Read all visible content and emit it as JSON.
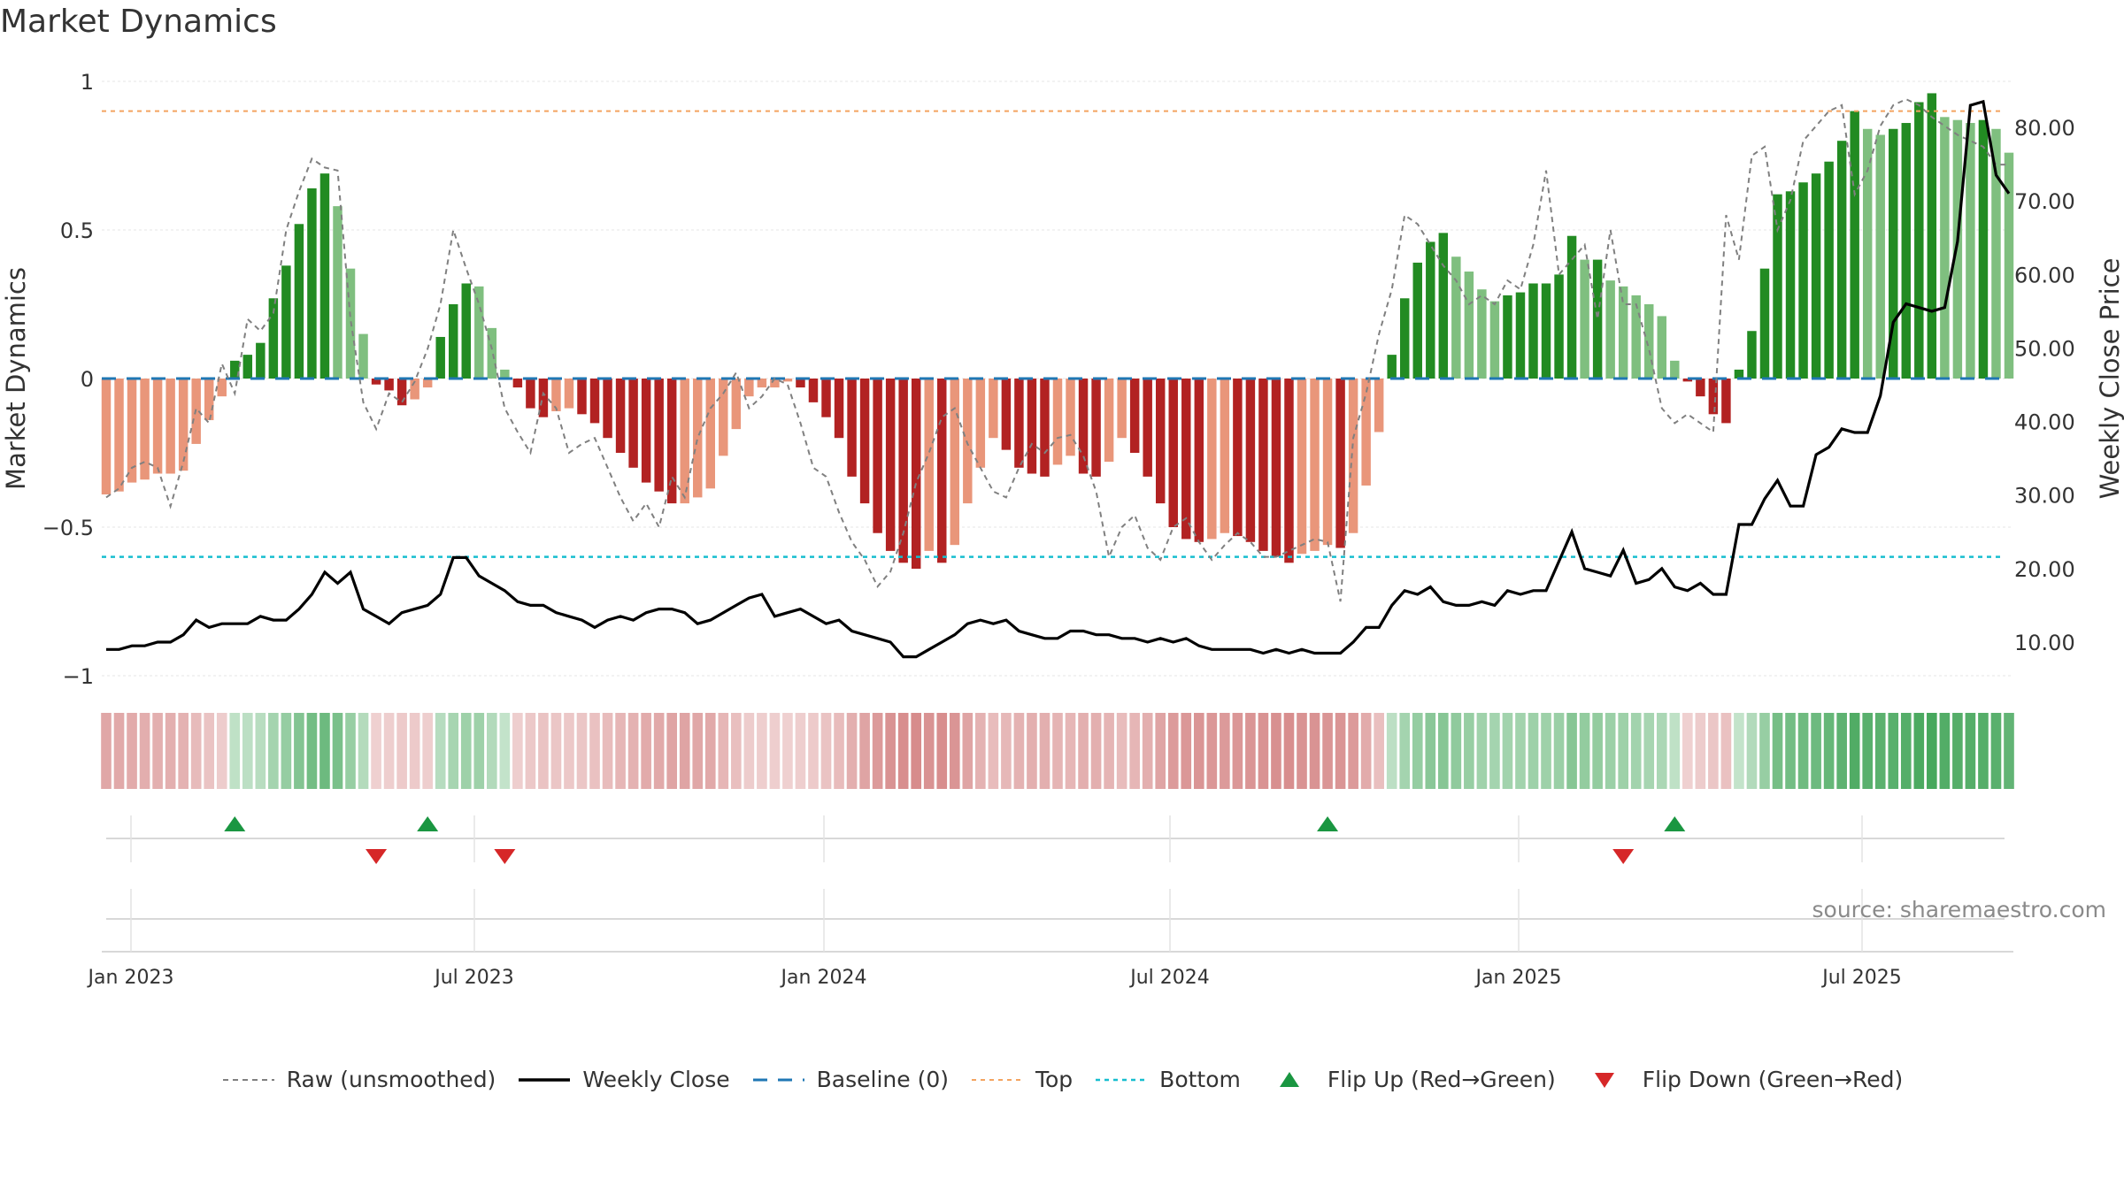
{
  "title": "Market Dynamics",
  "source": "source: sharemaestro.com",
  "colors": {
    "strong_green": "#228b22",
    "light_green": "#7fbf7f",
    "strong_red": "#b22222",
    "light_red": "#e9967a",
    "raw": "#808080",
    "close": "#000000",
    "baseline": "#1f77b4",
    "top": "#f4a460",
    "bottom": "#17becf",
    "flip_up": "#1a9641",
    "flip_down": "#d62728"
  },
  "legend": [
    {
      "label": "Raw (unsmoothed)",
      "icon": "dotted-gray-line"
    },
    {
      "label": "Weekly Close",
      "icon": "solid-black-line"
    },
    {
      "label": "Baseline (0)",
      "icon": "dashed-blue-line"
    },
    {
      "label": "Top",
      "icon": "dotted-orange-line"
    },
    {
      "label": "Bottom",
      "icon": "dotted-cyan-line"
    },
    {
      "label": "Flip Up (Red→Green)",
      "icon": "green-up-triangle"
    },
    {
      "label": "Flip Down (Green→Red)",
      "icon": "red-down-triangle"
    }
  ],
  "chart_data": {
    "type": "bar",
    "title": "Market Dynamics",
    "ylabel": "Market Dynamics",
    "y2label": "Weekly Close Price",
    "ylim": [
      -1,
      1
    ],
    "y2lim": [
      0,
      86
    ],
    "yticks": [
      "1",
      "0.5",
      "0",
      "−0.5",
      "−1"
    ],
    "y2ticks": [
      "10.00",
      "20.00",
      "30.00",
      "40.00",
      "50.00",
      "60.00",
      "70.00",
      "80.00"
    ],
    "xticks": [
      "Jan 2023",
      "Jul 2023",
      "Jan 2024",
      "Jul 2024",
      "Jan 2025",
      "Jul 2025"
    ],
    "top_line": 0.9,
    "bottom_line": -0.6,
    "baseline": 0,
    "grid": true,
    "legend_position": "bottom",
    "series": [
      {
        "name": "Raw (unsmoothed)",
        "kind": "line",
        "values": [
          -0.4,
          -0.37,
          -0.3,
          -0.28,
          -0.3,
          -0.43,
          -0.28,
          -0.1,
          -0.15,
          0.05,
          -0.05,
          0.2,
          0.16,
          0.22,
          0.5,
          0.63,
          0.74,
          0.71,
          0.7,
          0.2,
          -0.08,
          -0.17,
          -0.05,
          -0.08,
          -0.01,
          0.1,
          0.25,
          0.5,
          0.37,
          0.25,
          0.1,
          -0.1,
          -0.18,
          -0.25,
          -0.05,
          -0.1,
          -0.25,
          -0.22,
          -0.2,
          -0.3,
          -0.4,
          -0.48,
          -0.42,
          -0.5,
          -0.33,
          -0.4,
          -0.2,
          -0.1,
          -0.05,
          0.02,
          -0.1,
          -0.06,
          0.0,
          -0.02,
          -0.15,
          -0.3,
          -0.33,
          -0.45,
          -0.55,
          -0.61,
          -0.7,
          -0.65,
          -0.52,
          -0.35,
          -0.25,
          -0.13,
          -0.1,
          -0.22,
          -0.3,
          -0.38,
          -0.4,
          -0.3,
          -0.22,
          -0.25,
          -0.2,
          -0.19,
          -0.26,
          -0.38,
          -0.6,
          -0.5,
          -0.46,
          -0.57,
          -0.61,
          -0.5,
          -0.47,
          -0.55,
          -0.61,
          -0.56,
          -0.52,
          -0.55,
          -0.6,
          -0.6,
          -0.58,
          -0.56,
          -0.54,
          -0.55,
          -0.75,
          -0.2,
          -0.05,
          0.15,
          0.3,
          0.55,
          0.52,
          0.45,
          0.38,
          0.33,
          0.25,
          0.28,
          0.25,
          0.33,
          0.3,
          0.45,
          0.7,
          0.35,
          0.4,
          0.45,
          0.2,
          0.5,
          0.25,
          0.25,
          0.1,
          -0.1,
          -0.15,
          -0.12,
          -0.15,
          -0.18,
          0.55,
          0.4,
          0.75,
          0.78,
          0.5,
          0.6,
          0.8,
          0.85,
          0.9,
          0.92,
          0.62,
          0.7,
          0.85,
          0.92,
          0.94,
          0.92,
          0.88,
          0.85,
          0.82,
          0.8,
          0.78,
          0.72,
          0.72
        ]
      },
      {
        "name": "Weekly Close",
        "kind": "line",
        "values": [
          9,
          9,
          9.5,
          9.5,
          10,
          10,
          11,
          13,
          12,
          12.5,
          12.5,
          12.5,
          13.5,
          13,
          13,
          14.5,
          16.5,
          19.5,
          18,
          19.5,
          14.5,
          13.5,
          12.5,
          14,
          14.5,
          15,
          16.5,
          21.5,
          21.5,
          19,
          18,
          17,
          15.5,
          15,
          15,
          14,
          13.5,
          13,
          12,
          13,
          13.5,
          13,
          14,
          14.5,
          14.5,
          14,
          12.5,
          13,
          14,
          15,
          16,
          16.5,
          13.5,
          14,
          14.5,
          13.5,
          12.5,
          13,
          11.5,
          11,
          10.5,
          10,
          8,
          8,
          9,
          10,
          11,
          12.5,
          13,
          12.5,
          13,
          11.5,
          11,
          10.5,
          10.5,
          11.5,
          11.5,
          11,
          11,
          10.5,
          10.5,
          10,
          10.5,
          10,
          10.5,
          9.5,
          9,
          9,
          9,
          9,
          8.5,
          9,
          8.5,
          9,
          8.5,
          8.5,
          8.5,
          10,
          12,
          12,
          15,
          17,
          16.5,
          17.5,
          15.5,
          15,
          15,
          15.5,
          15,
          17,
          16.5,
          17,
          17,
          21,
          25,
          20,
          19.5,
          19,
          22.5,
          18,
          18.5,
          20,
          17.5,
          17,
          18,
          16.5,
          16.5,
          26,
          26,
          29.5,
          32,
          28.5,
          28.5,
          35.5,
          36.5,
          39,
          38.5,
          38.5,
          43.5,
          53.5,
          56,
          55.5,
          55,
          55.5,
          64.5,
          83,
          83.5,
          73.5,
          71
        ]
      },
      {
        "name": "Market Dynamics",
        "kind": "bar",
        "values": [
          -0.39,
          -0.38,
          -0.35,
          -0.34,
          -0.32,
          -0.32,
          -0.31,
          -0.22,
          -0.14,
          -0.06,
          0.06,
          0.08,
          0.12,
          0.27,
          0.38,
          0.52,
          0.64,
          0.69,
          0.58,
          0.37,
          0.15,
          -0.02,
          -0.04,
          -0.09,
          -0.07,
          -0.03,
          0.14,
          0.25,
          0.32,
          0.31,
          0.17,
          0.03,
          -0.03,
          -0.1,
          -0.13,
          -0.11,
          -0.1,
          -0.12,
          -0.15,
          -0.2,
          -0.25,
          -0.3,
          -0.35,
          -0.38,
          -0.42,
          -0.42,
          -0.4,
          -0.37,
          -0.26,
          -0.17,
          -0.06,
          -0.03,
          -0.03,
          -0.01,
          -0.03,
          -0.08,
          -0.13,
          -0.2,
          -0.33,
          -0.42,
          -0.52,
          -0.58,
          -0.62,
          -0.64,
          -0.58,
          -0.62,
          -0.56,
          -0.42,
          -0.3,
          -0.2,
          -0.24,
          -0.3,
          -0.32,
          -0.33,
          -0.29,
          -0.26,
          -0.32,
          -0.33,
          -0.28,
          -0.2,
          -0.25,
          -0.33,
          -0.42,
          -0.5,
          -0.54,
          -0.55,
          -0.54,
          -0.52,
          -0.53,
          -0.55,
          -0.58,
          -0.6,
          -0.62,
          -0.59,
          -0.58,
          -0.56,
          -0.57,
          -0.52,
          -0.36,
          -0.18,
          0.08,
          0.27,
          0.39,
          0.46,
          0.49,
          0.41,
          0.36,
          0.3,
          0.26,
          0.28,
          0.29,
          0.32,
          0.32,
          0.35,
          0.48,
          0.4,
          0.4,
          0.33,
          0.31,
          0.28,
          0.25,
          0.21,
          0.06,
          -0.01,
          -0.06,
          -0.12,
          -0.15,
          0.03,
          0.16,
          0.37,
          0.62,
          0.63,
          0.66,
          0.69,
          0.73,
          0.8,
          0.9,
          0.84,
          0.82,
          0.84,
          0.86,
          0.93,
          0.96,
          0.88,
          0.87,
          0.86,
          0.87,
          0.84,
          0.76
        ]
      }
    ],
    "flips_up": [
      10,
      25,
      95,
      122
    ],
    "flips_down": [
      21,
      31,
      118
    ]
  }
}
